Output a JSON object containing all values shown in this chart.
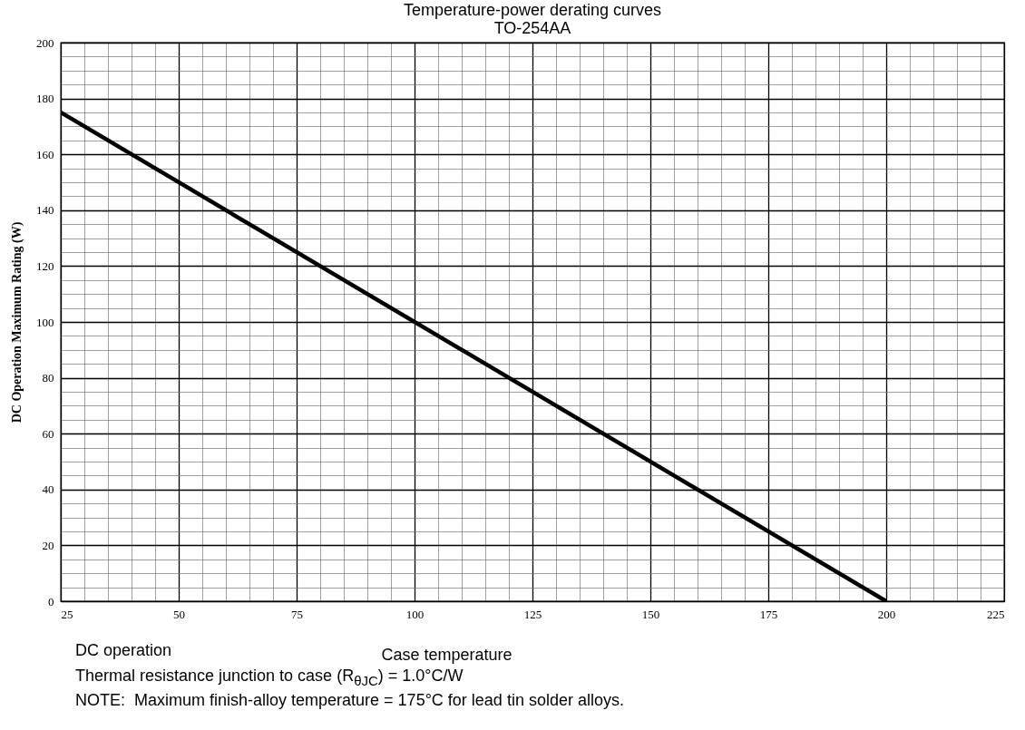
{
  "chart_data": {
    "type": "line",
    "title": "Temperature-power derating curves",
    "subtitle": "TO-254AA",
    "xlabel": "Case temperature",
    "ylabel": "DC Operation Maximum Rating (W)",
    "annotations": [
      "DC operation",
      "Thermal resistance junction to case (R$_{θJC}$) = 1.0°C/W",
      "NOTE:  Maximum finish-alloy temperature = 175°C for lead tin solder alloys."
    ],
    "x": [
      25,
      200
    ],
    "series": [
      {
        "color": "#000000",
        "values": [
          175,
          0
        ]
      }
    ],
    "xlim": [
      25,
      225
    ],
    "xticks": [
      25,
      {
        "value": 30,
        "label": null
      },
      {
        "value": 35,
        "label": null
      },
      {
        "value": 40,
        "label": null
      },
      {
        "value": 45,
        "label": null
      },
      50,
      {
        "value": 55,
        "label": null
      },
      {
        "value": 60,
        "label": null
      },
      {
        "value": 65,
        "label": null
      },
      {
        "value": 70,
        "label": null
      },
      75,
      {
        "value": 80,
        "label": null
      },
      {
        "value": 85,
        "label": null
      },
      {
        "value": 90,
        "label": null
      },
      {
        "value": 95,
        "label": null
      },
      100,
      {
        "value": 105,
        "label": null
      },
      {
        "value": 110,
        "label": null
      },
      {
        "value": 115,
        "label": null
      },
      {
        "value": 120,
        "label": null
      },
      125,
      {
        "value": 130,
        "label": null
      },
      {
        "value": 135,
        "label": null
      },
      {
        "value": 140,
        "label": null
      },
      {
        "value": 145,
        "label": null
      },
      150,
      {
        "value": 155,
        "label": null
      },
      {
        "value": 160,
        "label": null
      },
      {
        "value": 165,
        "label": null
      },
      {
        "value": 170,
        "label": null
      },
      175,
      {
        "value": 180,
        "label": null
      },
      {
        "value": 185,
        "label": null
      },
      {
        "value": 190,
        "label": null
      },
      {
        "value": 195,
        "label": null
      },
      200,
      {
        "value": 205,
        "label": null
      },
      {
        "value": 210,
        "label": null
      },
      {
        "value": 215,
        "label": null
      },
      {
        "value": 220,
        "label": null
      },
      225
    ],
    "ylim": [
      0,
      200
    ],
    "yticks": [
      0,
      {
        "value": 5,
        "label": null
      },
      {
        "value": 10,
        "label": null
      },
      {
        "value": 15,
        "label": null
      },
      20,
      {
        "value": 25,
        "label": null
      },
      {
        "value": 30,
        "label": null
      },
      {
        "value": 35,
        "label": null
      },
      40,
      {
        "value": 45,
        "label": null
      },
      {
        "value": 50,
        "label": null
      },
      {
        "value": 55,
        "label": null
      },
      60,
      {
        "value": 65,
        "label": null
      },
      {
        "value": 70,
        "label": null
      },
      {
        "value": 75,
        "label": null
      },
      80,
      {
        "value": 85,
        "label": null
      },
      {
        "value": 90,
        "label": null
      },
      {
        "value": 95,
        "label": null
      },
      100,
      {
        "value": 105,
        "label": null
      },
      {
        "value": 110,
        "label": null
      },
      {
        "value": 115,
        "label": null
      },
      120,
      {
        "value": 125,
        "label": null
      },
      {
        "value": 130,
        "label": null
      },
      {
        "value": 135,
        "label": null
      },
      140,
      {
        "value": 145,
        "label": null
      },
      {
        "value": 150,
        "label": null
      },
      {
        "value": 155,
        "label": null
      },
      160,
      {
        "value": 165,
        "label": null
      },
      {
        "value": 170,
        "label": null
      },
      {
        "value": 175,
        "label": null
      },
      180,
      {
        "value": 185,
        "label": null
      },
      {
        "value": 190,
        "label": null
      },
      {
        "value": 195,
        "label": null
      },
      200
    ],
    "grid": true
  }
}
